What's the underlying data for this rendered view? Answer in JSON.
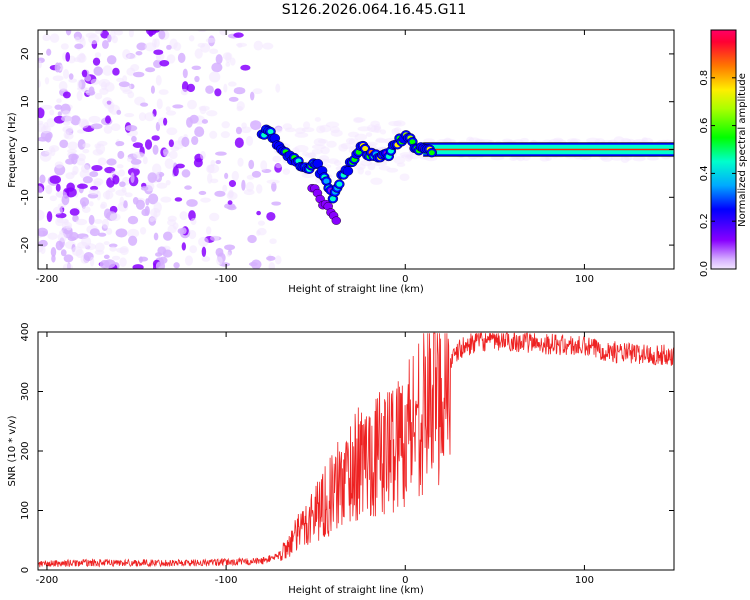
{
  "title": "S126.2026.064.16.45.G11",
  "colors": {
    "snr_line": "#ee2222",
    "axis": "#000000"
  },
  "chart_data": [
    {
      "type": "heatmap",
      "name": "spectrogram",
      "xlabel": "Height of straight line (km)",
      "ylabel": "Frequency (Hz)",
      "xlim": [
        -205,
        150
      ],
      "ylim": [
        -25,
        25
      ],
      "xticks": [
        -200,
        -100,
        0,
        100
      ],
      "yticks": [
        -20,
        -10,
        0,
        10,
        20
      ],
      "colorbar": {
        "label": "Normalized spectral amplitude",
        "range": [
          0,
          1
        ],
        "ticks": [
          0.0,
          0.2,
          0.4,
          0.6,
          0.8
        ],
        "tick_labels": [
          "0.0",
          "0.2",
          "0.4",
          "0.6",
          "0.8"
        ]
      },
      "ridge": {
        "x": [
          -80,
          -75,
          -70,
          -65,
          -60,
          -55,
          -50,
          -45,
          -40,
          -35,
          -30,
          -25,
          -20,
          -15,
          -10,
          -5,
          0,
          5,
          10,
          20,
          40,
          60,
          80,
          100,
          120,
          150
        ],
        "freq": [
          4,
          3,
          1,
          -1,
          -3,
          -4,
          -3,
          -6,
          -10,
          -5,
          -3,
          1,
          -1,
          -2,
          -1,
          1,
          3,
          1,
          0,
          0,
          0,
          0,
          0,
          0,
          0,
          0
        ]
      }
    },
    {
      "type": "line",
      "name": "snr",
      "xlabel": "Height of straight line (km)",
      "ylabel": "SNR (10 * v/v)",
      "xlim": [
        -205,
        150
      ],
      "ylim": [
        0,
        400
      ],
      "xticks": [
        -200,
        -100,
        0,
        100
      ],
      "yticks": [
        0,
        100,
        200,
        300,
        400
      ],
      "series": [
        {
          "name": "SNR",
          "x": [
            -205,
            -180,
            -150,
            -120,
            -100,
            -80,
            -70,
            -60,
            -50,
            -40,
            -30,
            -20,
            -10,
            0,
            10,
            20,
            30,
            40,
            60,
            80,
            100,
            120,
            150
          ],
          "values": [
            10,
            12,
            12,
            12,
            13,
            15,
            25,
            60,
            100,
            130,
            170,
            190,
            200,
            230,
            280,
            320,
            370,
            385,
            385,
            380,
            375,
            365,
            360
          ]
        }
      ]
    }
  ]
}
